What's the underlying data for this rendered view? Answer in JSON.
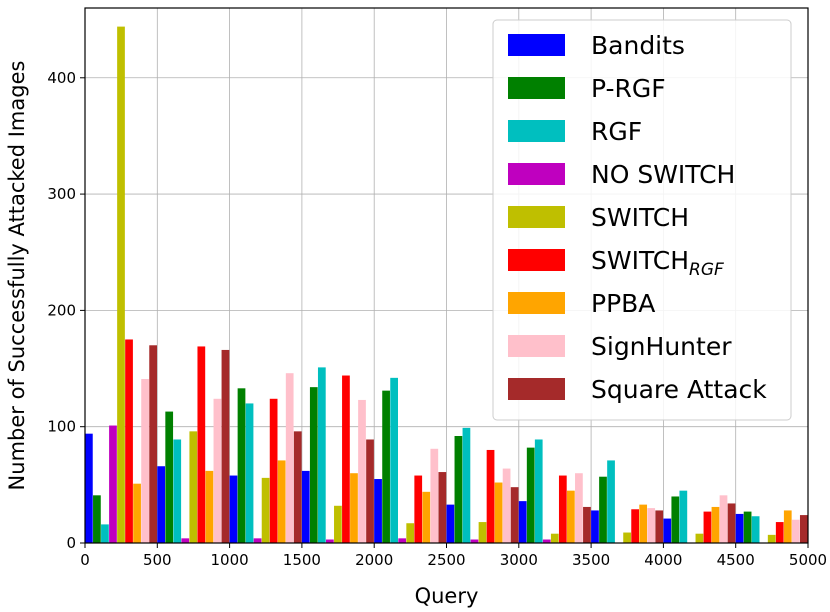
{
  "chart_data": {
    "type": "bar",
    "title": "",
    "xlabel": "Query",
    "ylabel": "Number of Successfully Attacked Images",
    "xlim": [
      0,
      5000
    ],
    "ylim": [
      0,
      460
    ],
    "xticks": [
      "0",
      "500",
      "1000",
      "1500",
      "2000",
      "2500",
      "3000",
      "3500",
      "4000",
      "4500",
      "5000"
    ],
    "yticks": [
      "0",
      "100",
      "200",
      "300",
      "400"
    ],
    "grid": true,
    "legend_position": "top-right",
    "bin_width": 500,
    "bin_starts": [
      0,
      500,
      1000,
      1500,
      2000,
      2500,
      3000,
      3500,
      4000,
      4500
    ],
    "series": [
      {
        "name": "Bandits",
        "subscript": "",
        "color": "#0000ff",
        "values": [
          94,
          66,
          58,
          62,
          55,
          33,
          36,
          28,
          21,
          25
        ]
      },
      {
        "name": "P-RGF",
        "subscript": "",
        "color": "#008000",
        "values": [
          41,
          113,
          133,
          134,
          131,
          92,
          82,
          57,
          40,
          27
        ]
      },
      {
        "name": "RGF",
        "subscript": "",
        "color": "#00bfbf",
        "values": [
          16,
          89,
          120,
          151,
          142,
          99,
          89,
          71,
          45,
          23
        ]
      },
      {
        "name": "NO SWITCH",
        "subscript": "",
        "color": "#bf00bf",
        "values": [
          101,
          4,
          4,
          3,
          4,
          3,
          3,
          0,
          0,
          0
        ]
      },
      {
        "name": "SWITCH",
        "subscript": "",
        "color": "#bfbf00",
        "values": [
          444,
          96,
          56,
          32,
          17,
          18,
          8,
          9,
          8,
          7
        ]
      },
      {
        "name": "SWITCH",
        "subscript": "RGF",
        "color": "#ff0000",
        "values": [
          175,
          169,
          124,
          144,
          58,
          80,
          58,
          29,
          27,
          18
        ]
      },
      {
        "name": "PPBA",
        "subscript": "",
        "color": "#ffa500",
        "values": [
          51,
          62,
          71,
          60,
          44,
          52,
          45,
          33,
          31,
          28
        ]
      },
      {
        "name": "SignHunter",
        "subscript": "",
        "color": "#ffc0cb",
        "values": [
          141,
          124,
          146,
          123,
          81,
          64,
          60,
          30,
          41,
          20
        ]
      },
      {
        "name": "Square Attack",
        "subscript": "",
        "color": "#a52a2a",
        "values": [
          170,
          166,
          96,
          89,
          61,
          48,
          31,
          28,
          34,
          24
        ]
      }
    ]
  }
}
